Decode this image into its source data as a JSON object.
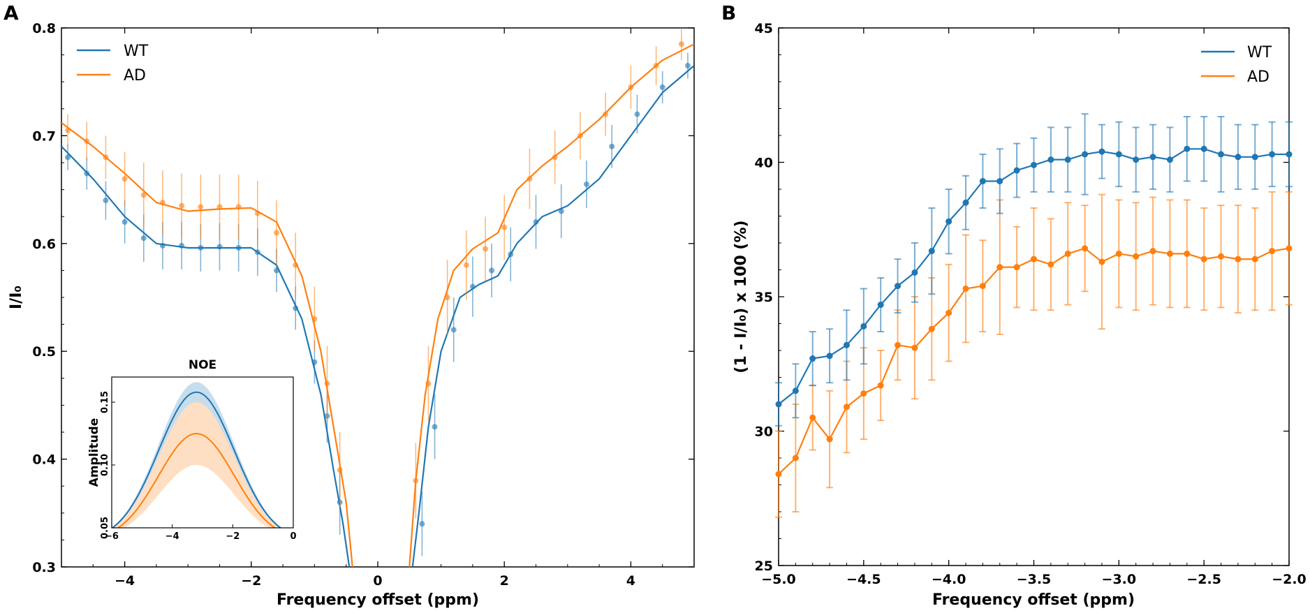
{
  "colors": {
    "wt": "#1f77b4",
    "ad": "#ff7f0e"
  },
  "chart_data": [
    {
      "panel": "A",
      "type": "line",
      "title": "",
      "xlabel": "Frequency offset (ppm)",
      "ylabel": "I/I₀",
      "xlim": [
        -5,
        5
      ],
      "ylim": [
        0.3,
        0.8
      ],
      "xticks": [
        -4,
        -2,
        0,
        2,
        4
      ],
      "yticks": [
        0.3,
        0.4,
        0.5,
        0.6,
        0.7,
        0.8
      ],
      "xtick_labels": [
        "−4",
        "−2",
        "0",
        "2",
        "4"
      ],
      "ytick_labels": [
        "0.3",
        "0.4",
        "0.5",
        "0.6",
        "0.7",
        "0.8"
      ],
      "legend": [
        "WT",
        "AD"
      ],
      "legend_position": "top-left",
      "series": [
        {
          "name": "WT",
          "color_key": "wt",
          "fit_x": [
            -5,
            -4.5,
            -4,
            -3.5,
            -3,
            -2.5,
            -2,
            -1.6,
            -1.2,
            -0.9,
            -0.7,
            -0.55,
            -0.45,
            0.55,
            0.65,
            0.8,
            1.0,
            1.3,
            1.6,
            1.9,
            2.2,
            2.6,
            3.0,
            3.5,
            4.0,
            4.5,
            5.0
          ],
          "fit_y": [
            0.69,
            0.66,
            0.625,
            0.6,
            0.596,
            0.596,
            0.596,
            0.58,
            0.53,
            0.46,
            0.39,
            0.34,
            0.3,
            0.3,
            0.35,
            0.43,
            0.5,
            0.55,
            0.562,
            0.57,
            0.6,
            0.625,
            0.635,
            0.66,
            0.7,
            0.74,
            0.765
          ],
          "points_x": [
            -4.9,
            -4.6,
            -4.3,
            -4.0,
            -3.7,
            -3.4,
            -3.1,
            -2.8,
            -2.5,
            -2.2,
            -1.9,
            -1.6,
            -1.3,
            -1.0,
            -0.8,
            -0.6,
            0.7,
            0.9,
            1.2,
            1.5,
            1.8,
            2.1,
            2.5,
            2.9,
            3.3,
            3.7,
            4.1,
            4.5,
            4.9
          ],
          "points_y": [
            0.68,
            0.665,
            0.64,
            0.62,
            0.605,
            0.598,
            0.598,
            0.596,
            0.597,
            0.596,
            0.592,
            0.575,
            0.54,
            0.49,
            0.44,
            0.36,
            0.34,
            0.43,
            0.52,
            0.56,
            0.575,
            0.59,
            0.62,
            0.63,
            0.655,
            0.69,
            0.72,
            0.745,
            0.765
          ],
          "err": [
            0.012,
            0.015,
            0.018,
            0.02,
            0.022,
            0.022,
            0.022,
            0.022,
            0.022,
            0.022,
            0.022,
            0.02,
            0.02,
            0.02,
            0.025,
            0.03,
            0.03,
            0.03,
            0.03,
            0.028,
            0.025,
            0.025,
            0.025,
            0.025,
            0.022,
            0.02,
            0.018,
            0.015,
            0.012
          ]
        },
        {
          "name": "AD",
          "color_key": "ad",
          "fit_x": [
            -5,
            -4.5,
            -4,
            -3.5,
            -3,
            -2.5,
            -2,
            -1.6,
            -1.2,
            -0.9,
            -0.7,
            -0.5,
            -0.4,
            0.5,
            0.6,
            0.75,
            0.95,
            1.2,
            1.5,
            1.9,
            2.2,
            2.6,
            3.0,
            3.5,
            4.0,
            4.5,
            5.0
          ],
          "fit_y": [
            0.712,
            0.69,
            0.665,
            0.638,
            0.63,
            0.632,
            0.633,
            0.62,
            0.57,
            0.5,
            0.43,
            0.36,
            0.3,
            0.3,
            0.38,
            0.46,
            0.53,
            0.575,
            0.595,
            0.61,
            0.65,
            0.672,
            0.69,
            0.715,
            0.745,
            0.77,
            0.785
          ],
          "points_x": [
            -4.9,
            -4.6,
            -4.3,
            -4.0,
            -3.7,
            -3.4,
            -3.1,
            -2.8,
            -2.5,
            -2.2,
            -1.9,
            -1.6,
            -1.3,
            -1.0,
            -0.8,
            -0.6,
            0.6,
            0.8,
            1.1,
            1.4,
            1.7,
            2.0,
            2.4,
            2.8,
            3.2,
            3.6,
            4.0,
            4.4,
            4.8
          ],
          "points_y": [
            0.705,
            0.695,
            0.68,
            0.66,
            0.645,
            0.638,
            0.635,
            0.634,
            0.634,
            0.634,
            0.628,
            0.61,
            0.58,
            0.53,
            0.47,
            0.39,
            0.38,
            0.47,
            0.55,
            0.58,
            0.595,
            0.615,
            0.66,
            0.68,
            0.7,
            0.72,
            0.745,
            0.765,
            0.785
          ],
          "err": [
            0.015,
            0.018,
            0.02,
            0.025,
            0.03,
            0.03,
            0.03,
            0.03,
            0.03,
            0.03,
            0.03,
            0.03,
            0.03,
            0.03,
            0.035,
            0.035,
            0.035,
            0.035,
            0.035,
            0.032,
            0.03,
            0.03,
            0.028,
            0.025,
            0.022,
            0.02,
            0.02,
            0.018,
            0.015
          ]
        }
      ],
      "inset": {
        "title": "NOE",
        "ylabel": "Amplitude",
        "xlim": [
          -6,
          0
        ],
        "ylim": [
          0.05,
          0.17
        ],
        "xticks": [
          -6,
          -4,
          -2,
          0
        ],
        "xtick_labels": [
          "−6",
          "−4",
          "−2",
          "0"
        ],
        "yticks": [
          0.05,
          0.1,
          0.15
        ],
        "ytick_labels": [
          "0.05",
          "0.10",
          "0.15"
        ],
        "series": [
          {
            "name": "WT",
            "color_key": "wt",
            "center": -3.2,
            "sigma": 1.25,
            "base": 0.04,
            "peak": 0.158,
            "band": 0.008
          },
          {
            "name": "AD",
            "color_key": "ad",
            "center": -3.2,
            "sigma": 1.25,
            "base": 0.04,
            "peak": 0.125,
            "band": 0.025
          }
        ]
      }
    },
    {
      "panel": "B",
      "type": "line",
      "title": "",
      "xlabel": "Frequency offset (ppm)",
      "ylabel": "(1 - I/I₀) x 100 (%)",
      "xlim": [
        -5.0,
        -2.0
      ],
      "ylim": [
        25,
        45
      ],
      "xticks": [
        -5.0,
        -4.5,
        -4.0,
        -3.5,
        -3.0,
        -2.5,
        -2.0
      ],
      "xtick_labels": [
        "−5.0",
        "−4.5",
        "−4.0",
        "−3.5",
        "−3.0",
        "−2.5",
        "−2.0"
      ],
      "yticks": [
        25,
        30,
        35,
        40,
        45
      ],
      "ytick_labels": [
        "25",
        "30",
        "35",
        "40",
        "45"
      ],
      "legend": [
        "WT",
        "AD"
      ],
      "legend_position": "top-right",
      "x": [
        -5.0,
        -4.9,
        -4.8,
        -4.7,
        -4.6,
        -4.5,
        -4.4,
        -4.3,
        -4.2,
        -4.1,
        -4.0,
        -3.9,
        -3.8,
        -3.7,
        -3.6,
        -3.5,
        -3.4,
        -3.3,
        -3.2,
        -3.1,
        -3.0,
        -2.9,
        -2.8,
        -2.7,
        -2.6,
        -2.5,
        -2.4,
        -2.3,
        -2.2,
        -2.1,
        -2.0
      ],
      "series": [
        {
          "name": "WT",
          "color_key": "wt",
          "values": [
            31.0,
            31.5,
            32.7,
            32.8,
            33.2,
            33.9,
            34.7,
            35.4,
            35.9,
            36.7,
            37.8,
            38.5,
            39.3,
            39.3,
            39.7,
            39.9,
            40.1,
            40.1,
            40.3,
            40.4,
            40.3,
            40.1,
            40.2,
            40.1,
            40.5,
            40.5,
            40.3,
            40.2,
            40.2,
            40.3,
            40.3
          ],
          "err": [
            0.8,
            1.0,
            1.0,
            1.0,
            1.3,
            1.4,
            1.0,
            1.0,
            1.1,
            1.6,
            1.2,
            1.0,
            1.0,
            1.2,
            1.0,
            1.0,
            1.2,
            1.2,
            1.5,
            1.0,
            1.2,
            1.2,
            1.2,
            1.2,
            1.2,
            1.2,
            1.4,
            1.2,
            1.2,
            1.2,
            1.2
          ]
        },
        {
          "name": "AD",
          "color_key": "ad",
          "values": [
            28.4,
            29.0,
            30.5,
            29.7,
            30.9,
            31.4,
            31.7,
            33.2,
            33.1,
            33.8,
            34.4,
            35.3,
            35.4,
            36.1,
            36.1,
            36.4,
            36.2,
            36.6,
            36.8,
            36.3,
            36.6,
            36.5,
            36.7,
            36.6,
            36.6,
            36.4,
            36.5,
            36.4,
            36.4,
            36.7,
            36.8
          ],
          "err": [
            1.6,
            2.0,
            1.2,
            1.8,
            1.7,
            1.7,
            1.3,
            1.3,
            1.9,
            1.9,
            1.8,
            2.0,
            1.7,
            2.5,
            1.5,
            1.9,
            1.7,
            1.9,
            1.6,
            2.5,
            2.0,
            2.0,
            2.0,
            2.0,
            2.0,
            1.9,
            1.9,
            2.0,
            1.9,
            2.2,
            2.1
          ]
        }
      ]
    }
  ]
}
